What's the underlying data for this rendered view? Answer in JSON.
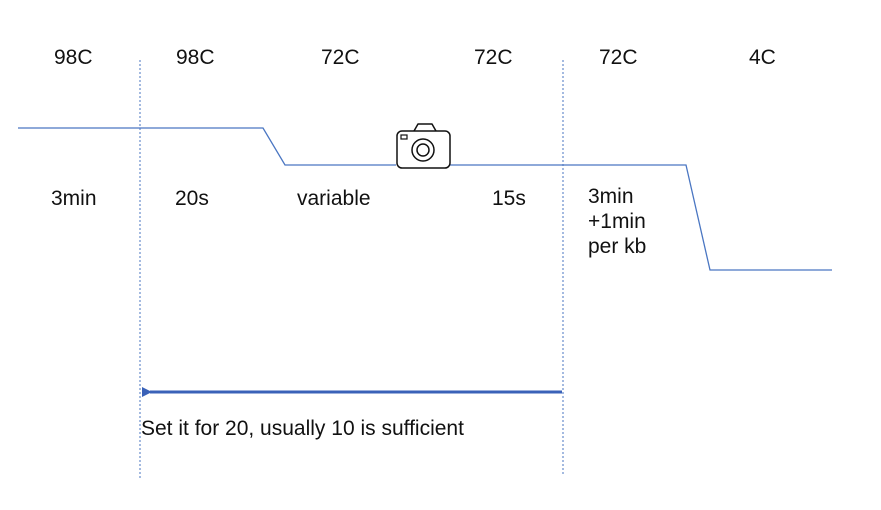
{
  "temperatures": [
    "98C",
    "98C",
    "72C",
    "72C",
    "72C",
    "4C"
  ],
  "times": [
    "3min",
    "20s",
    "variable",
    "15s"
  ],
  "extension_time_lines": [
    "3min",
    "+1min",
    "per kb"
  ],
  "cycle_note": "Set it for 20, usually 10 is sufficient",
  "colors": {
    "profile_line": "#4a76c2",
    "arrow": "#3a62b8",
    "divider": "#4a76c2",
    "text": "#111111"
  },
  "icons": {
    "imaging_step": "camera-icon"
  }
}
